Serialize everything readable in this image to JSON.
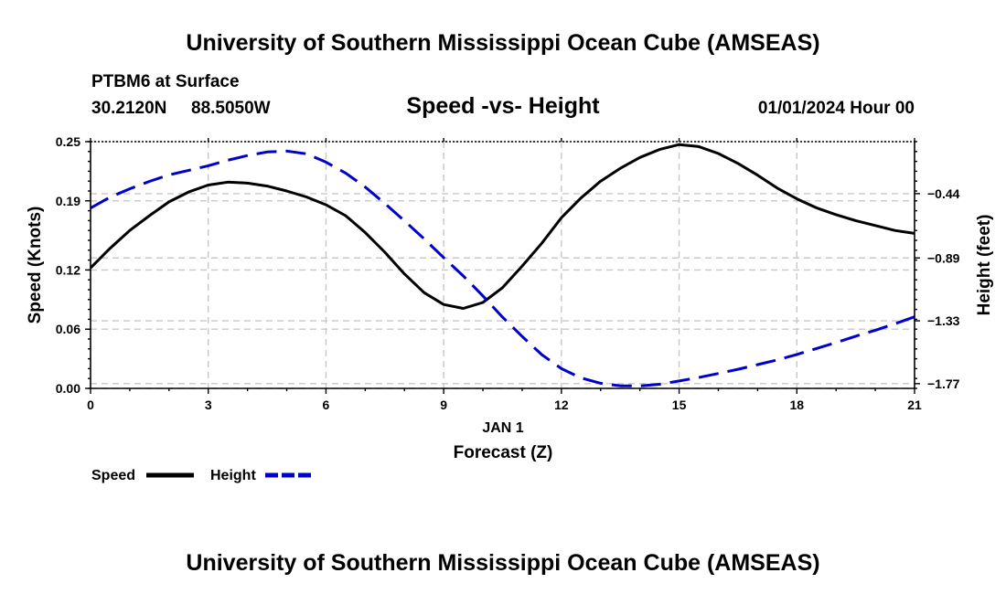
{
  "header": {
    "title": "University of Southern Mississippi Ocean Cube (AMSEAS)",
    "station": "PTBM6 at Surface",
    "lat": "30.2120N",
    "lon": "88.5050W",
    "datetime": "01/01/2024 Hour 00"
  },
  "footer": {
    "title": "University of Southern Mississippi Ocean Cube (AMSEAS)"
  },
  "chart_data": {
    "type": "line",
    "title": "Speed -vs- Height",
    "xlabel": "Forecast (Z)",
    "xsublabel": "JAN 1",
    "ylabel": "Speed (Knots)",
    "y2label": "Height (feet)",
    "xlim": [
      0,
      21
    ],
    "ylim": [
      0,
      0.25
    ],
    "y2lim": [
      -1.803,
      -0.076
    ],
    "x_ticks": [
      0,
      3,
      6,
      9,
      12,
      15,
      18,
      21
    ],
    "y_ticks": [
      0.0,
      0.06,
      0.12,
      0.19,
      0.25
    ],
    "y_tick_labels": [
      "0.00",
      "0.06",
      "0.12",
      "0.19",
      "0.25"
    ],
    "y2_ticks": [
      -1.77,
      -1.33,
      -0.89,
      -0.44
    ],
    "y2_tick_labels": [
      "−1.77",
      "−1.33",
      "−0.89",
      "−0.44"
    ],
    "grid": true,
    "legend": [
      {
        "name": "Speed",
        "color": "#000000",
        "style": "solid"
      },
      {
        "name": "Height",
        "color": "#0000cc",
        "style": "dashed"
      }
    ],
    "series": [
      {
        "name": "Speed",
        "axis": "left",
        "color": "#000000",
        "x": [
          0,
          0.5,
          1,
          1.5,
          2,
          2.5,
          3,
          3.5,
          4,
          4.5,
          5,
          5.5,
          6,
          6.5,
          7,
          7.5,
          8,
          8.5,
          9,
          9.5,
          10,
          10.5,
          11,
          11.5,
          12,
          12.5,
          13,
          13.5,
          14,
          14.5,
          15,
          15.5,
          16,
          16.5,
          17,
          17.5,
          18,
          18.5,
          19,
          19.5,
          20,
          20.5,
          21
        ],
        "values": [
          0.122,
          0.142,
          0.16,
          0.175,
          0.189,
          0.199,
          0.206,
          0.209,
          0.208,
          0.205,
          0.2,
          0.194,
          0.186,
          0.175,
          0.158,
          0.138,
          0.116,
          0.097,
          0.085,
          0.081,
          0.087,
          0.102,
          0.124,
          0.147,
          0.173,
          0.193,
          0.21,
          0.223,
          0.234,
          0.242,
          0.247,
          0.245,
          0.238,
          0.228,
          0.216,
          0.203,
          0.192,
          0.183,
          0.176,
          0.17,
          0.165,
          0.16,
          0.157
        ]
      },
      {
        "name": "Height",
        "axis": "right",
        "color": "#0000cc",
        "x": [
          0,
          0.5,
          1,
          1.5,
          2,
          2.5,
          3,
          3.5,
          4,
          4.5,
          5,
          5.5,
          6,
          6.5,
          7,
          7.5,
          8,
          8.5,
          9,
          9.5,
          10,
          10.5,
          11,
          11.5,
          12,
          12.5,
          13,
          13.5,
          14,
          14.5,
          15,
          15.5,
          16,
          16.5,
          17,
          17.5,
          18,
          18.5,
          19,
          19.5,
          20,
          20.5,
          21
        ],
        "values": [
          -0.541,
          -0.464,
          -0.406,
          -0.354,
          -0.309,
          -0.277,
          -0.245,
          -0.206,
          -0.173,
          -0.148,
          -0.142,
          -0.161,
          -0.219,
          -0.296,
          -0.393,
          -0.509,
          -0.63,
          -0.756,
          -0.888,
          -1.016,
          -1.156,
          -1.305,
          -1.44,
          -1.567,
          -1.665,
          -1.73,
          -1.767,
          -1.785,
          -1.786,
          -1.774,
          -1.751,
          -1.727,
          -1.699,
          -1.669,
          -1.637,
          -1.604,
          -1.566,
          -1.524,
          -1.482,
          -1.438,
          -1.396,
          -1.351,
          -1.302
        ]
      }
    ]
  }
}
